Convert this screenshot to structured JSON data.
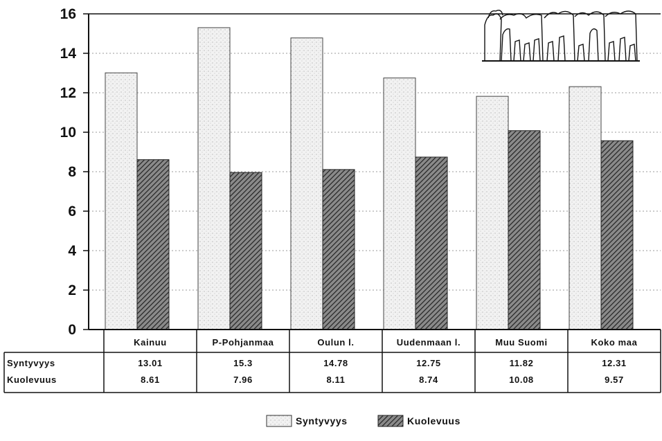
{
  "chart_data": {
    "type": "bar",
    "categories": [
      "Kainuu",
      "P-Pohjanmaa",
      "Oulun l.",
      "Uudenmaan l.",
      "Muu Suomi",
      "Koko maa"
    ],
    "series": [
      {
        "name": "Syntyvyys",
        "values": [
          13.01,
          15.3,
          14.78,
          12.75,
          11.82,
          12.31
        ],
        "labels": [
          "13.01",
          "15.3",
          "14.78",
          "12.75",
          "11.82",
          "12.31"
        ]
      },
      {
        "name": "Kuolevuus",
        "values": [
          8.61,
          7.96,
          8.11,
          8.74,
          10.08,
          9.57
        ],
        "labels": [
          "8.61",
          "7.96",
          "8.11",
          "8.74",
          "10.08",
          "9.57"
        ]
      }
    ],
    "yticks": [
      "0",
      "2",
      "4",
      "6",
      "8",
      "10",
      "12",
      "14",
      "16"
    ],
    "ylim": [
      0,
      16
    ],
    "grid": true,
    "legend_position": "bottom-center",
    "data_table": true,
    "title": "",
    "xlabel": "",
    "ylabel": ""
  },
  "colors": {
    "syntyvyys_fill": "#efefef",
    "kuolevuus_fill": "#555555",
    "axis": "#111111",
    "grid": "#999999"
  },
  "icons": {
    "decoration": "crowd-silhouette-icon"
  }
}
